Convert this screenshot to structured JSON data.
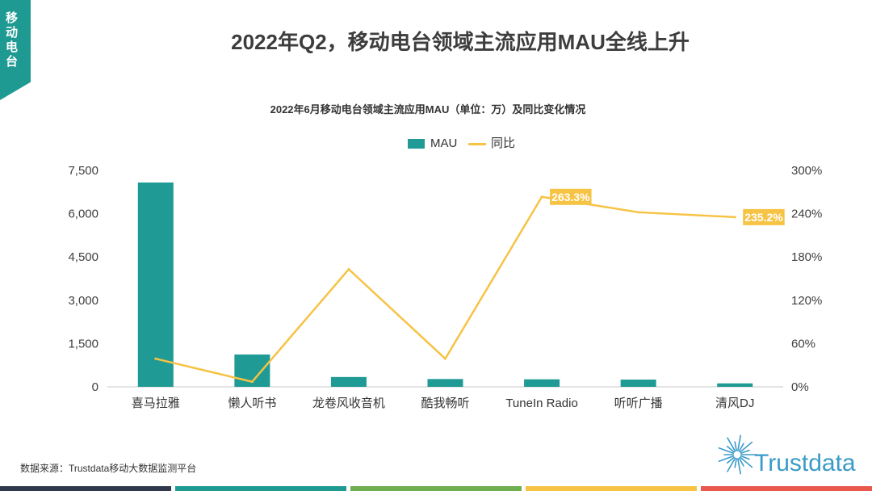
{
  "tag": {
    "text": "移动电台",
    "color": "#1f9a92"
  },
  "title": "2022年Q2，移动电台领域主流应用MAU全线上升",
  "chart_data": {
    "type": "bar",
    "title": "2022年6月移动电台领域主流应用MAU（单位：万）及同比变化情况",
    "categories": [
      "喜马拉雅",
      "懒人听书",
      "龙卷风收音机",
      "酷我畅听",
      "TuneIn Radio",
      "听听广播",
      "清风DJ"
    ],
    "series": [
      {
        "name": "MAU",
        "type": "bar",
        "axis": "left",
        "color": "#1f9a94",
        "values": [
          7080,
          1120,
          340,
          270,
          260,
          250,
          120
        ]
      },
      {
        "name": "同比",
        "type": "line",
        "axis": "right",
        "color": "#f6c344",
        "unit": "%",
        "values": [
          39,
          7,
          163,
          39,
          263.3,
          242,
          235.2
        ],
        "labels": [
          null,
          null,
          null,
          null,
          "263.3%",
          null,
          "235.2%"
        ]
      }
    ],
    "y_left": {
      "lim": [
        0,
        7500
      ],
      "tick_labels": [
        "0",
        "1,500",
        "3,000",
        "4,500",
        "6,000",
        "7,500"
      ]
    },
    "y_right": {
      "lim": [
        0,
        300
      ],
      "tick_labels": [
        "0%",
        "60%",
        "120%",
        "180%",
        "240%",
        "300%"
      ]
    },
    "legend": "top-center",
    "grid": false
  },
  "footer": {
    "source": "数据来源：Trustdata移动大数据监测平台"
  },
  "logo": {
    "text": "Trustdata",
    "color": "#3a9bc9"
  },
  "bottom_strip": {
    "colors": [
      "#2e3a4c",
      "#1f9a92",
      "#6fae4f",
      "#f6c344",
      "#e8594c"
    ]
  }
}
